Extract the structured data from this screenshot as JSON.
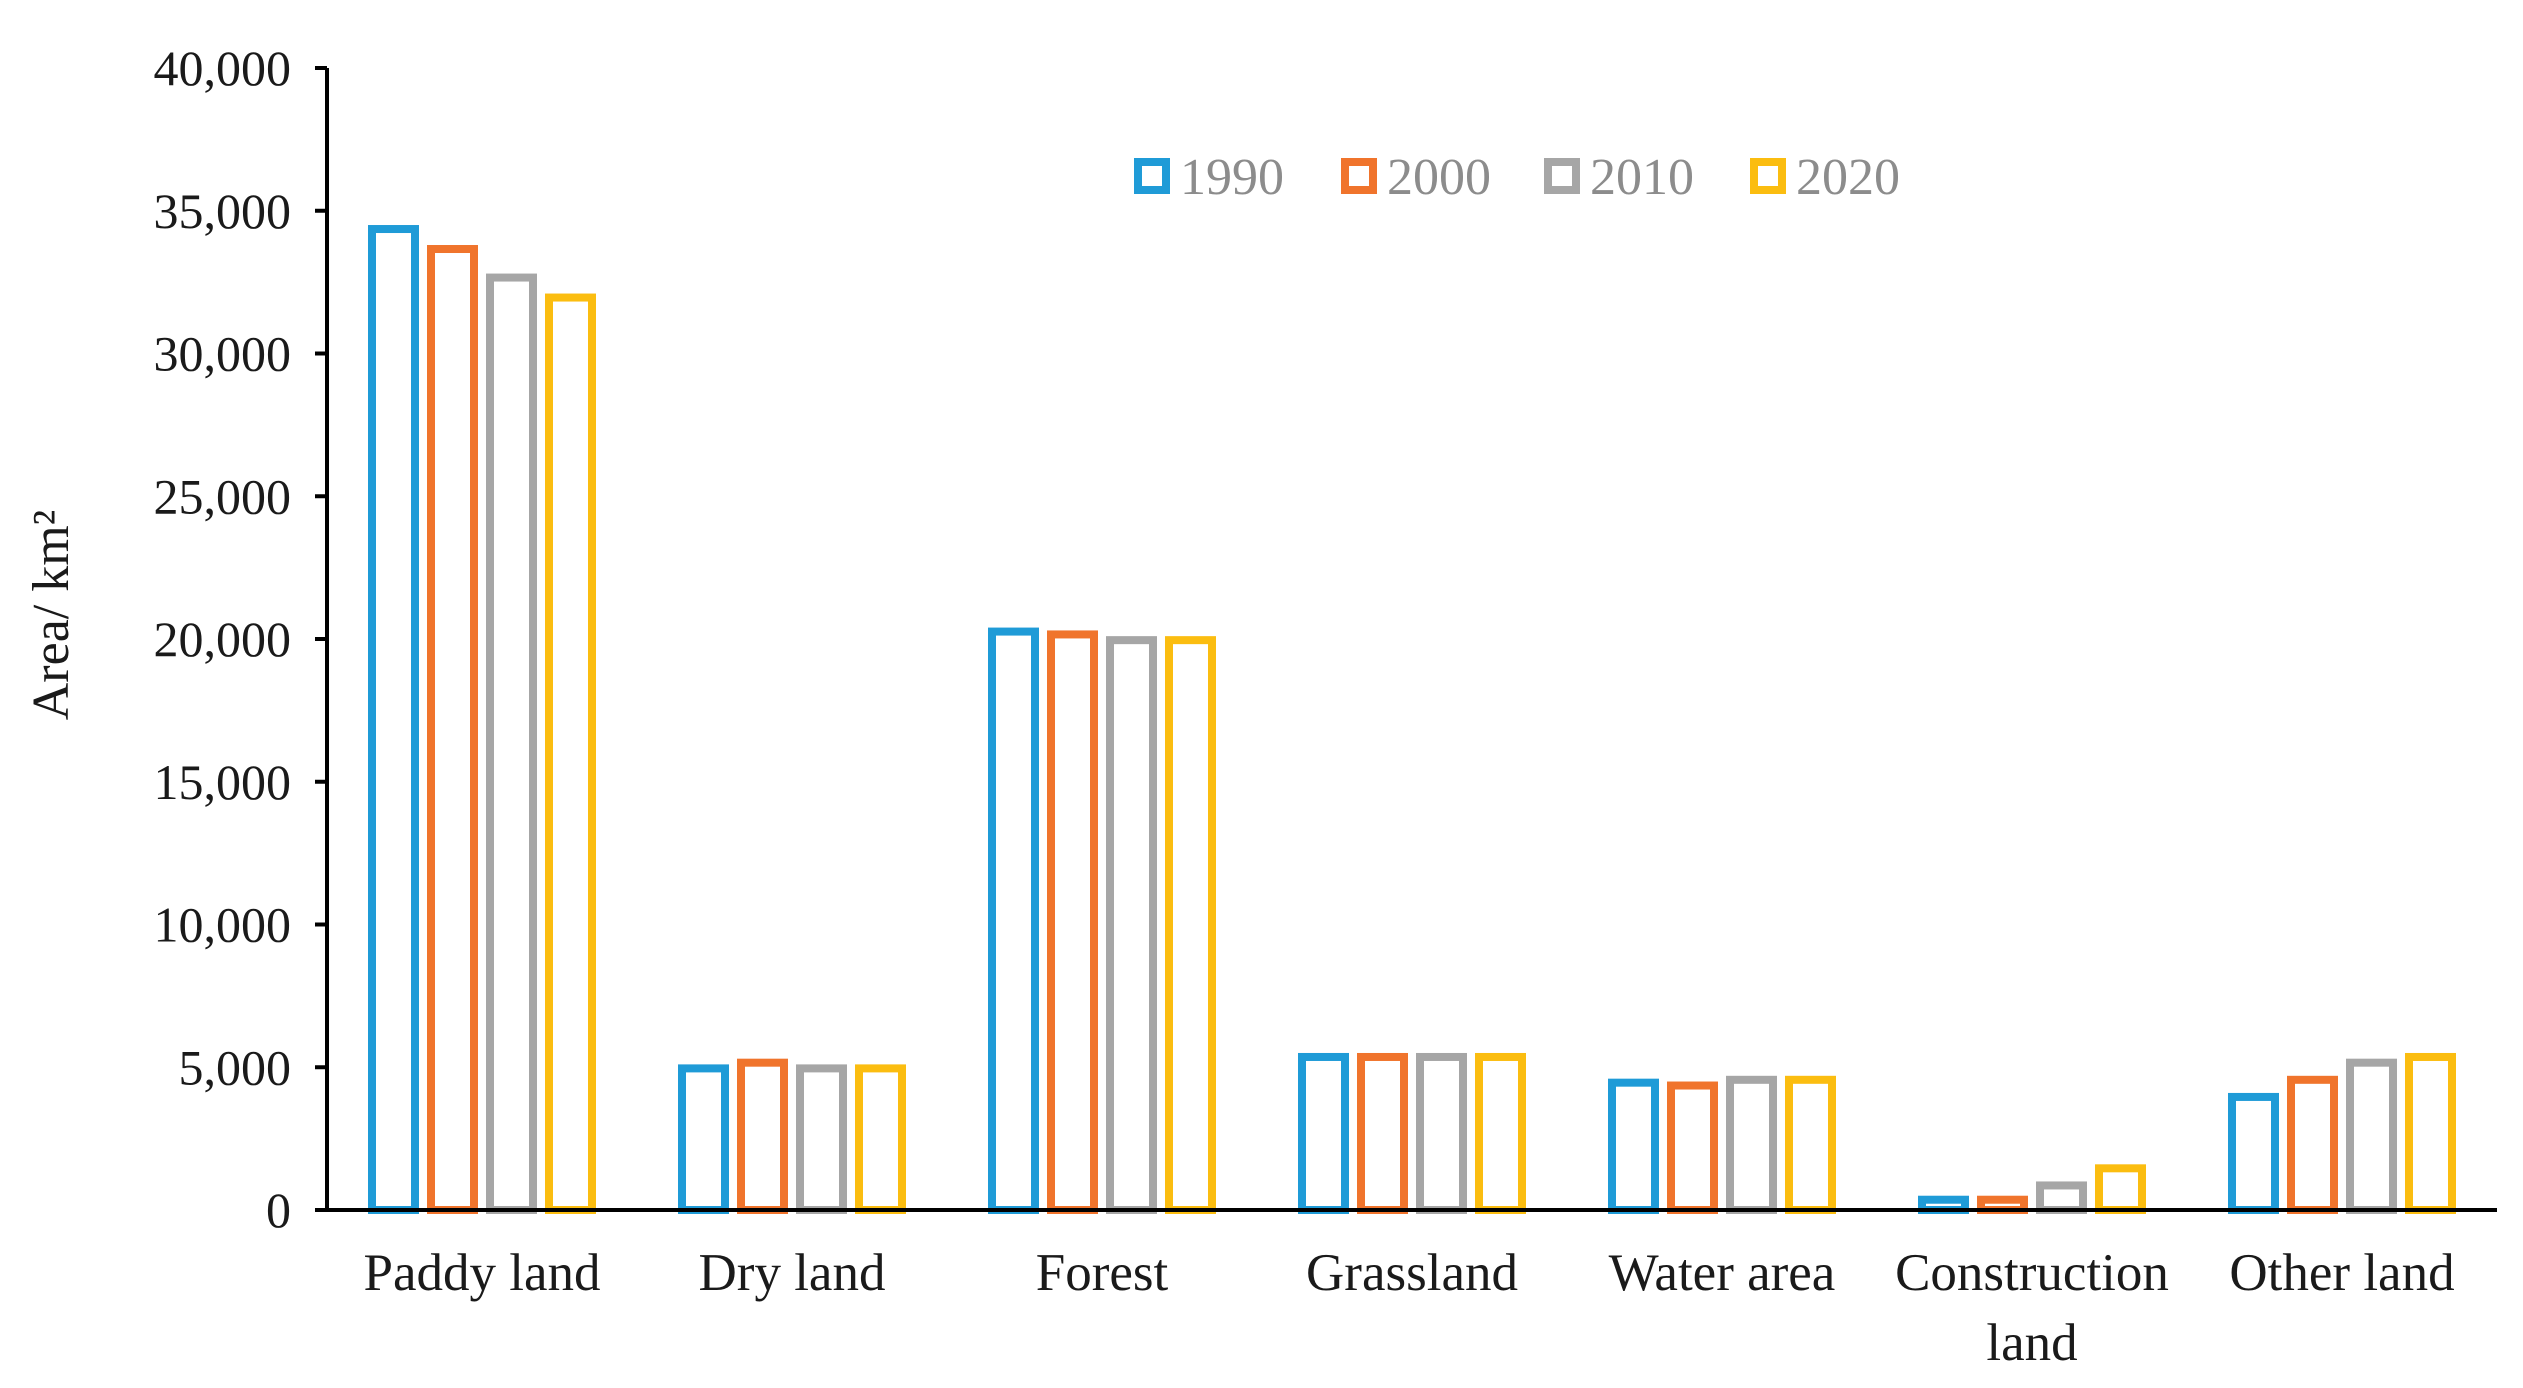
{
  "chart_data": {
    "type": "bar",
    "title": "",
    "xlabel": "",
    "ylabel": "Area/ km²",
    "ylim": [
      0,
      40000
    ],
    "yticks": [
      0,
      5000,
      10000,
      15000,
      20000,
      25000,
      30000,
      35000,
      40000
    ],
    "ytick_labels": [
      "0",
      "5,000",
      "10,000",
      "15,000",
      "20,000",
      "25,000",
      "30,000",
      "35,000",
      "40,000"
    ],
    "grid": false,
    "legend_position": "top-center",
    "categories": [
      [
        "Paddy land"
      ],
      [
        "Dry land"
      ],
      [
        "Forest"
      ],
      [
        "Grassland"
      ],
      [
        "Water area"
      ],
      [
        "Construction",
        "land"
      ],
      [
        "Other land"
      ]
    ],
    "series": [
      {
        "name": "1990",
        "color": "#1f9bd7",
        "values": [
          34500,
          5100,
          20400,
          5500,
          4600,
          500,
          4100
        ]
      },
      {
        "name": "2000",
        "color": "#f0742c",
        "values": [
          33800,
          5300,
          20300,
          5500,
          4500,
          500,
          4700
        ]
      },
      {
        "name": "2010",
        "color": "#a6a6a6",
        "values": [
          32800,
          5100,
          20100,
          5500,
          4700,
          1000,
          5300
        ]
      },
      {
        "name": "2020",
        "color": "#fbbd10",
        "values": [
          32100,
          5100,
          20100,
          5500,
          4700,
          1600,
          5500
        ]
      }
    ]
  }
}
